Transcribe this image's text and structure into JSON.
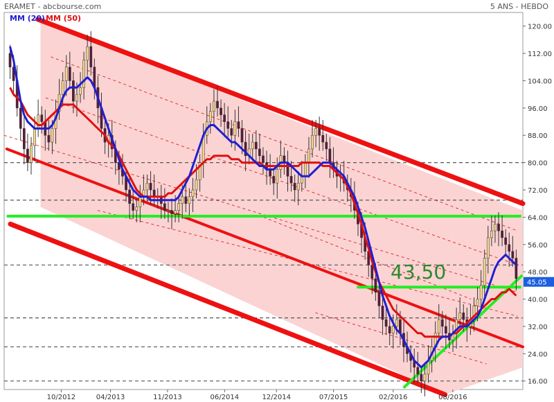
{
  "header": {
    "title": "ERAMET - abcbourse.com",
    "period": "5 ANS - HEBDO"
  },
  "legend": [
    {
      "label": "MM (20)",
      "color": "#1f1fd0"
    },
    {
      "label": "MM (50)",
      "color": "#e01010"
    }
  ],
  "chart_data": {
    "type": "candlestick",
    "y_ticks": [
      16,
      24,
      32,
      40,
      48,
      56,
      64,
      72,
      80,
      88,
      96,
      104,
      112,
      120
    ],
    "y_tick_labels": [
      "16.00",
      "24.00",
      "32.00",
      "40.00",
      "48.00",
      "56.00",
      "64.00",
      "72.00",
      "80.00",
      "88.00",
      "96.00",
      "104.00",
      "112.00",
      "120.00"
    ],
    "ylim": [
      13.5,
      124
    ],
    "x_ticks": [
      {
        "label": "10/2012",
        "t": 0.11
      },
      {
        "label": "04/2013",
        "t": 0.205
      },
      {
        "label": "11/2013",
        "t": 0.315
      },
      {
        "label": "06/2014",
        "t": 0.425
      },
      {
        "label": "12/2014",
        "t": 0.525
      },
      {
        "label": "07/2015",
        "t": 0.635
      },
      {
        "label": "02/2016",
        "t": 0.75
      },
      {
        "label": "08/2016",
        "t": 0.865
      }
    ],
    "dashed_levels": [
      16,
      26,
      34.5,
      50,
      80,
      69
    ],
    "last_price": "45.05",
    "annotation": "43,50",
    "close": [
      108,
      104,
      96,
      90,
      84,
      80,
      85,
      90,
      94,
      92,
      88,
      86,
      90,
      95,
      100,
      104,
      108,
      104,
      98,
      100,
      102,
      110,
      114,
      108,
      102,
      96,
      90,
      86,
      88,
      84,
      80,
      78,
      76,
      72,
      68,
      66,
      67,
      70,
      72,
      74,
      72,
      70,
      70,
      68,
      66,
      66,
      65,
      66,
      68,
      70,
      68,
      70,
      72,
      75,
      80,
      88,
      92,
      95,
      98,
      96,
      94,
      92,
      90,
      88,
      92,
      90,
      86,
      82,
      84,
      86,
      84,
      82,
      80,
      78,
      76,
      74,
      78,
      82,
      80,
      76,
      74,
      72,
      74,
      76,
      80,
      84,
      88,
      90,
      88,
      86,
      84,
      80,
      78,
      76,
      76,
      74,
      72,
      70,
      66,
      62,
      58,
      54,
      50,
      46,
      42,
      38,
      34,
      32,
      30,
      32,
      34,
      30,
      26,
      24,
      22,
      20,
      18,
      16,
      18,
      22,
      26,
      30,
      34,
      32,
      30,
      28,
      30,
      34,
      36,
      34,
      32,
      34,
      38,
      40,
      44,
      52,
      58,
      60,
      62,
      60,
      58,
      56,
      54,
      52,
      46
    ],
    "ma20": [
      114,
      110,
      104,
      98,
      94,
      92,
      91,
      90,
      90,
      90,
      90,
      90,
      91,
      93,
      96,
      99,
      101,
      102,
      102,
      102,
      103,
      104,
      105,
      104,
      102,
      99,
      96,
      93,
      90,
      87,
      84,
      81,
      78,
      76,
      74,
      72,
      71,
      70,
      70,
      70,
      69,
      69,
      69,
      69,
      69,
      69,
      69,
      69,
      70,
      72,
      74,
      76,
      79,
      82,
      85,
      88,
      90,
      91,
      91,
      90,
      89,
      88,
      87,
      86,
      86,
      85,
      84,
      83,
      82,
      81,
      80,
      79,
      79,
      78,
      78,
      78,
      79,
      80,
      80,
      80,
      79,
      78,
      77,
      76,
      76,
      76,
      77,
      78,
      79,
      80,
      80,
      80,
      79,
      78,
      77,
      76,
      74,
      72,
      70,
      67,
      64,
      61,
      57,
      53,
      49,
      45,
      41,
      38,
      35,
      33,
      31,
      30,
      28,
      26,
      24,
      22,
      21,
      20,
      21,
      22,
      24,
      26,
      28,
      29,
      29,
      29,
      30,
      31,
      32,
      32,
      32,
      33,
      34,
      35,
      37,
      40,
      43,
      46,
      49,
      51,
      52,
      53,
      52,
      51,
      50
    ],
    "ma50": [
      102,
      100,
      99,
      98,
      96,
      94,
      93,
      92,
      91,
      91,
      92,
      93,
      94,
      95,
      96,
      97,
      97,
      97,
      97,
      96,
      95,
      94,
      93,
      92,
      91,
      90,
      89,
      88,
      86,
      85,
      84,
      82,
      80,
      78,
      76,
      74,
      72,
      71,
      70,
      70,
      70,
      70,
      70,
      70,
      70,
      71,
      71,
      72,
      73,
      74,
      75,
      76,
      77,
      78,
      79,
      80,
      81,
      81,
      82,
      82,
      82,
      82,
      82,
      81,
      81,
      81,
      80,
      80,
      80,
      80,
      80,
      80,
      79,
      79,
      79,
      79,
      79,
      79,
      79,
      79,
      79,
      79,
      79,
      80,
      80,
      80,
      80,
      80,
      80,
      79,
      79,
      79,
      78,
      77,
      76,
      75,
      73,
      71,
      68,
      65,
      62,
      58,
      55,
      51,
      48,
      45,
      43,
      41,
      39,
      37,
      36,
      35,
      34,
      33,
      32,
      31,
      30,
      30,
      29,
      29,
      29,
      29,
      29,
      29,
      29,
      29,
      30,
      30,
      31,
      32,
      33,
      34,
      35,
      36,
      37,
      38,
      39,
      40,
      40,
      41,
      42,
      42,
      43,
      42,
      41
    ]
  }
}
